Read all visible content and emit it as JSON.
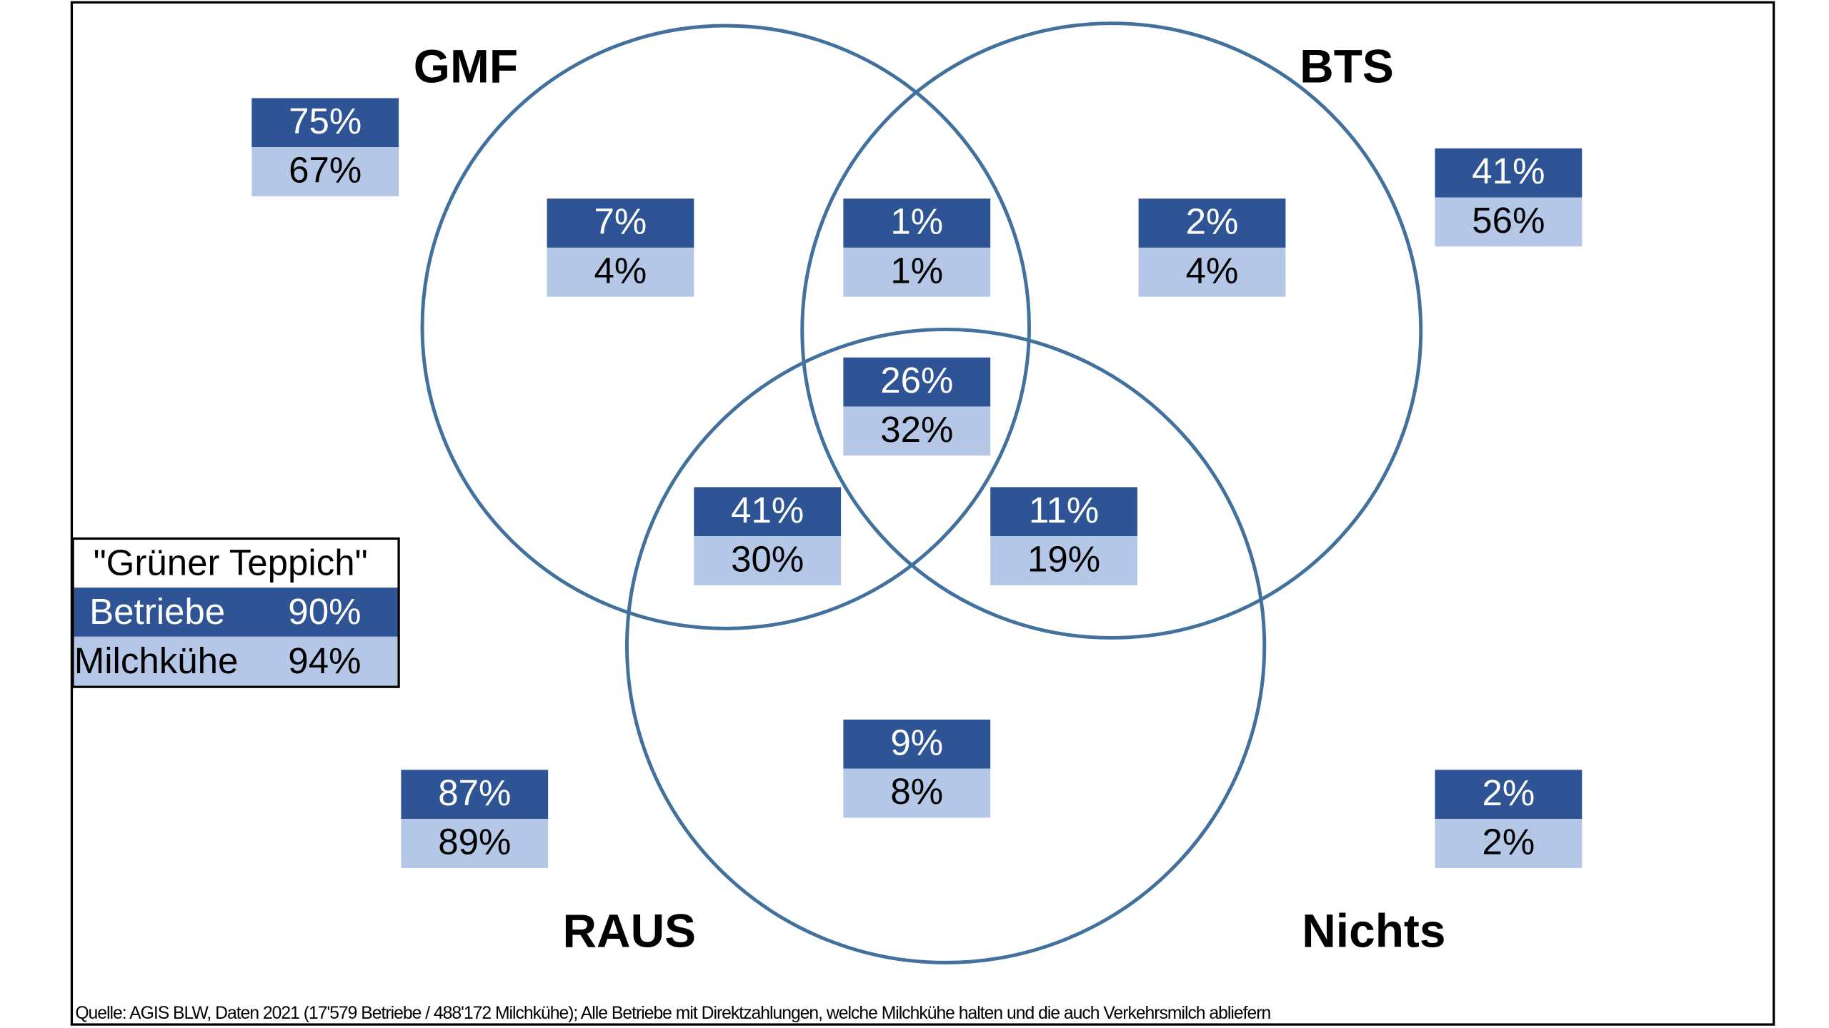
{
  "sets": [
    {
      "label": "GMF"
    },
    {
      "label": "BTS"
    },
    {
      "label": "RAUS"
    },
    {
      "label": "Nichts"
    }
  ],
  "regions": [
    {
      "betriebe": "75%",
      "milchkuehe": "67%"
    },
    {
      "betriebe": "7%",
      "milchkuehe": "4%"
    },
    {
      "betriebe": "1%",
      "milchkuehe": "1%"
    },
    {
      "betriebe": "2%",
      "milchkuehe": "4%"
    },
    {
      "betriebe": "41%",
      "milchkuehe": "56%"
    },
    {
      "betriebe": "26%",
      "milchkuehe": "32%"
    },
    {
      "betriebe": "41%",
      "milchkuehe": "30%"
    },
    {
      "betriebe": "11%",
      "milchkuehe": "19%"
    },
    {
      "betriebe": "9%",
      "milchkuehe": "8%"
    },
    {
      "betriebe": "87%",
      "milchkuehe": "89%"
    },
    {
      "betriebe": "2%",
      "milchkuehe": "2%"
    }
  ],
  "legend": {
    "title": "\"Grüner Teppich\"",
    "rows": [
      [
        "Betriebe",
        "90%"
      ],
      [
        "Milchkühe",
        "94%"
      ]
    ]
  },
  "source": "Quelle: AGIS BLW, Daten 2021 (17'579 Betriebe / 488'172 Milchkühe); Alle Betriebe mit Direktzahlungen, welche Milchkühe halten und die auch Verkehrsmilch abliefern"
}
